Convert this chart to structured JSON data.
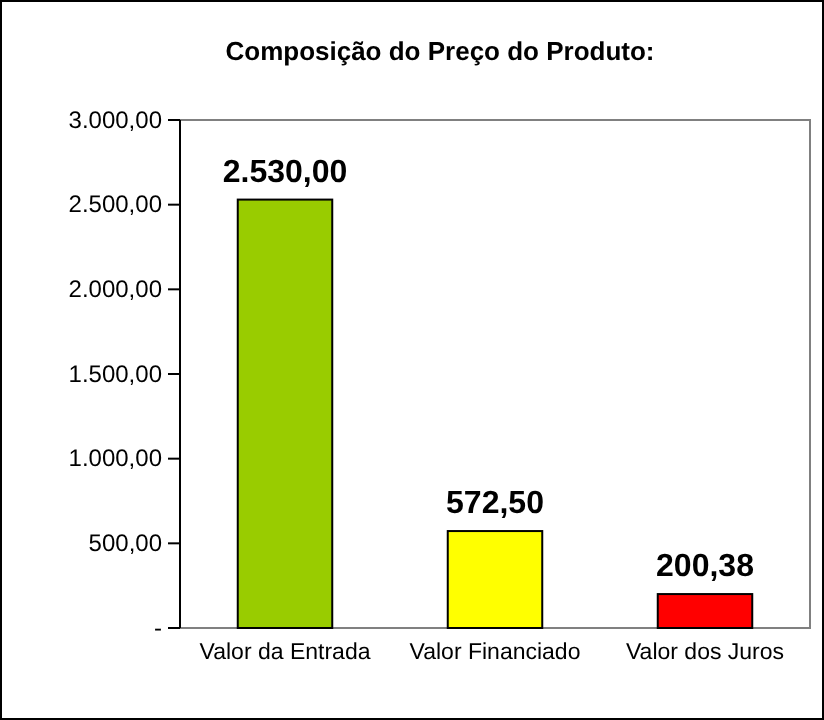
{
  "chart_data": {
    "type": "bar",
    "title": "Composição do Preço do Produto:",
    "categories": [
      "Valor da Entrada",
      "Valor Financiado",
      "Valor dos Juros"
    ],
    "values": [
      2530,
      572.5,
      200.38
    ],
    "colors": [
      "#99cc00",
      "#ffff00",
      "#ff0000"
    ],
    "value_labels": [
      "2.530,00",
      "572,50",
      "200,38"
    ],
    "ylim": [
      0,
      3000
    ],
    "yticks": [
      {
        "value": 0,
        "label": "-"
      },
      {
        "value": 500,
        "label": "500,00"
      },
      {
        "value": 1000,
        "label": "1.000,00"
      },
      {
        "value": 1500,
        "label": "1.500,00"
      },
      {
        "value": 2000,
        "label": "2.000,00"
      },
      {
        "value": 2500,
        "label": "2.500,00"
      },
      {
        "value": 3000,
        "label": "3.000,00"
      }
    ],
    "grid": false
  }
}
